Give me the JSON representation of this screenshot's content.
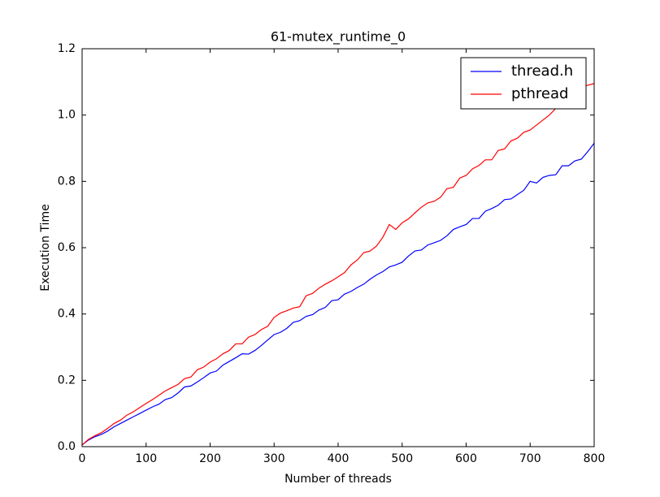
{
  "chart_data": {
    "type": "line",
    "title": "61-mutex_runtime_0",
    "x_label": "Number of threads",
    "y_label": "Execution Time",
    "x": [
      0,
      10,
      20,
      30,
      40,
      50,
      60,
      70,
      80,
      90,
      100,
      110,
      120,
      130,
      140,
      150,
      160,
      170,
      180,
      190,
      200,
      210,
      220,
      230,
      240,
      250,
      260,
      270,
      280,
      290,
      300,
      310,
      320,
      330,
      340,
      350,
      360,
      370,
      380,
      390,
      400,
      410,
      420,
      430,
      440,
      450,
      460,
      470,
      480,
      490,
      500,
      510,
      520,
      530,
      540,
      550,
      560,
      570,
      580,
      590,
      600,
      610,
      620,
      630,
      640,
      650,
      660,
      670,
      680,
      690,
      700,
      710,
      720,
      730,
      740,
      750,
      760,
      770,
      780,
      790,
      800
    ],
    "series": [
      {
        "name": "thread.h",
        "color": "#0000ff",
        "values": [
          0.005,
          0.02,
          0.03,
          0.037,
          0.047,
          0.06,
          0.07,
          0.08,
          0.09,
          0.1,
          0.11,
          0.12,
          0.128,
          0.142,
          0.148,
          0.162,
          0.18,
          0.183,
          0.195,
          0.208,
          0.222,
          0.228,
          0.246,
          0.257,
          0.268,
          0.28,
          0.279,
          0.29,
          0.305,
          0.322,
          0.338,
          0.345,
          0.357,
          0.375,
          0.38,
          0.393,
          0.398,
          0.412,
          0.42,
          0.44,
          0.443,
          0.46,
          0.468,
          0.48,
          0.49,
          0.505,
          0.518,
          0.528,
          0.542,
          0.548,
          0.556,
          0.575,
          0.59,
          0.593,
          0.608,
          0.615,
          0.622,
          0.636,
          0.655,
          0.663,
          0.67,
          0.688,
          0.688,
          0.71,
          0.718,
          0.728,
          0.745,
          0.747,
          0.76,
          0.773,
          0.8,
          0.795,
          0.812,
          0.818,
          0.82,
          0.847,
          0.847,
          0.862,
          0.867,
          0.89,
          0.915
        ]
      },
      {
        "name": "pthread",
        "color": "#ff0000",
        "values": [
          0.005,
          0.022,
          0.033,
          0.042,
          0.055,
          0.07,
          0.08,
          0.095,
          0.105,
          0.118,
          0.13,
          0.142,
          0.155,
          0.168,
          0.178,
          0.188,
          0.205,
          0.21,
          0.232,
          0.24,
          0.255,
          0.265,
          0.28,
          0.29,
          0.31,
          0.31,
          0.33,
          0.338,
          0.353,
          0.363,
          0.39,
          0.403,
          0.41,
          0.418,
          0.422,
          0.455,
          0.462,
          0.478,
          0.49,
          0.5,
          0.512,
          0.525,
          0.548,
          0.563,
          0.585,
          0.59,
          0.605,
          0.632,
          0.67,
          0.655,
          0.675,
          0.687,
          0.705,
          0.722,
          0.735,
          0.74,
          0.752,
          0.778,
          0.782,
          0.81,
          0.818,
          0.838,
          0.848,
          0.865,
          0.865,
          0.893,
          0.898,
          0.922,
          0.93,
          0.948,
          0.955,
          0.97,
          0.985,
          1.0,
          1.02,
          1.04,
          1.055,
          1.07,
          1.085,
          1.09,
          1.095
        ]
      }
    ],
    "xlim": [
      0,
      800
    ],
    "xticks": [
      0,
      100,
      200,
      300,
      400,
      500,
      600,
      700,
      800
    ],
    "ylim": [
      0,
      1.2
    ],
    "yticks": [
      {
        "value": 0,
        "label": "0.0"
      },
      0.2,
      0.4,
      0.6,
      0.8,
      {
        "value": 1,
        "label": "1.0"
      },
      1.2
    ],
    "legend": "upper right",
    "grid": false
  }
}
